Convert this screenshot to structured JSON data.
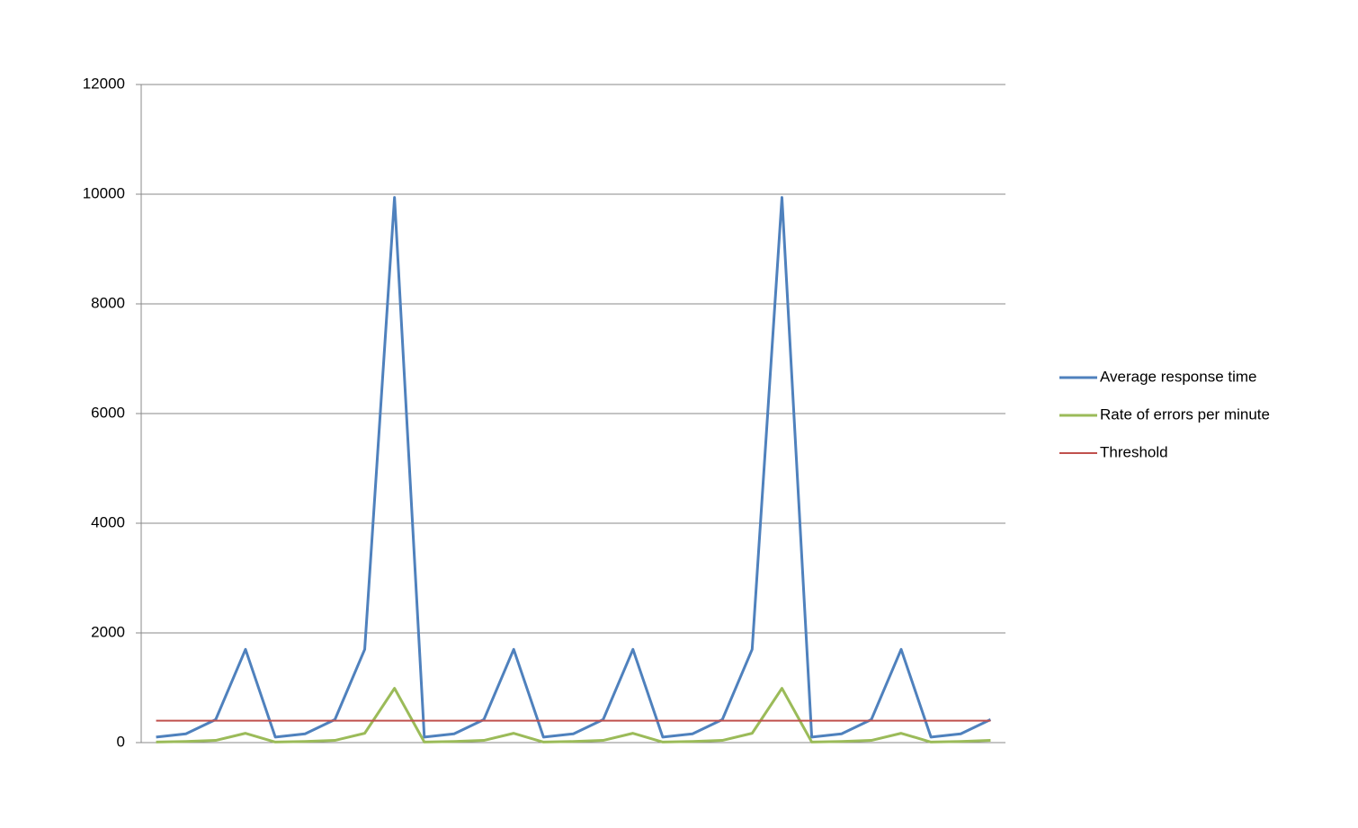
{
  "chart_data": {
    "type": "line",
    "categories": [
      null,
      null,
      null,
      null,
      null,
      null,
      null,
      null,
      null,
      null,
      null,
      null,
      null,
      null,
      null,
      null,
      null,
      null,
      null,
      null,
      null,
      null,
      null,
      null,
      null,
      null,
      null,
      null,
      null
    ],
    "series": [
      {
        "name": "Average response time",
        "color": "#4f81bd",
        "values": [
          100,
          160,
          420,
          1700,
          100,
          160,
          420,
          1700,
          9940,
          100,
          160,
          420,
          1700,
          100,
          160,
          420,
          1700,
          100,
          160,
          420,
          1700,
          9940,
          100,
          160,
          420,
          1700,
          100,
          160,
          420
        ]
      },
      {
        "name": "Rate of errors per minute",
        "color": "#9bbb59",
        "values": [
          10,
          20,
          40,
          170,
          10,
          20,
          40,
          170,
          990,
          10,
          20,
          40,
          170,
          10,
          20,
          40,
          170,
          10,
          20,
          40,
          170,
          990,
          10,
          20,
          40,
          170,
          10,
          20,
          40
        ]
      },
      {
        "name": "Threshold",
        "color": "#c0504d",
        "values": [
          400,
          400,
          400,
          400,
          400,
          400,
          400,
          400,
          400,
          400,
          400,
          400,
          400,
          400,
          400,
          400,
          400,
          400,
          400,
          400,
          400,
          400,
          400,
          400,
          400,
          400,
          400,
          400,
          400
        ]
      }
    ],
    "ylim": [
      0,
      12000
    ],
    "yticks": [
      0,
      2000,
      4000,
      6000,
      8000,
      10000,
      12000
    ],
    "grid": true,
    "legend": "right"
  }
}
